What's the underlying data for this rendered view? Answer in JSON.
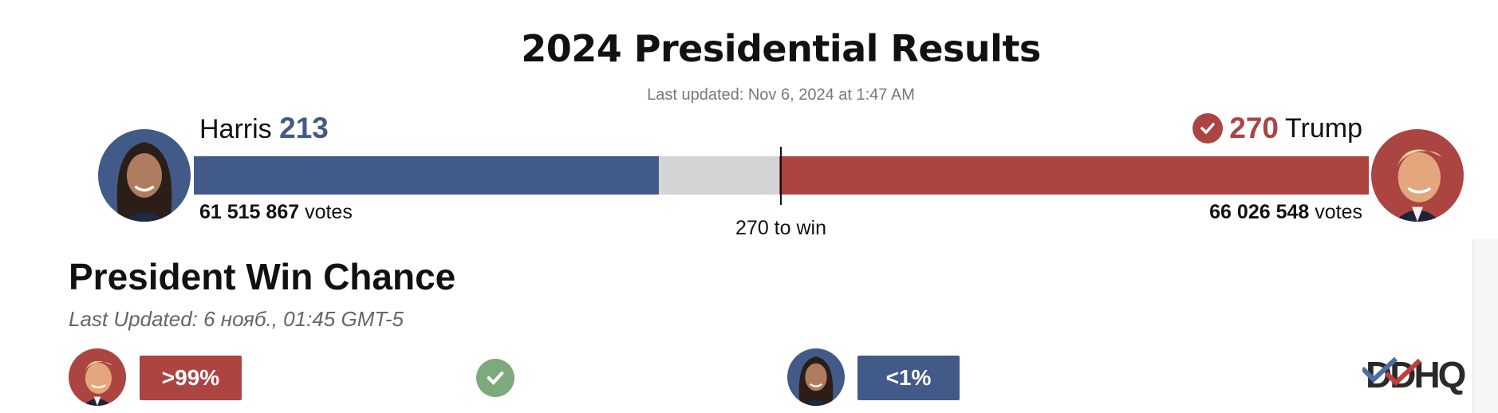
{
  "header": {
    "title": "2024 Presidential Results",
    "last_updated": "Last updated: Nov 6, 2024 at 1:47 AM"
  },
  "harris": {
    "name": "Harris",
    "electoral_votes": "213",
    "votes_number": "61 515 867",
    "votes_label": "votes",
    "color": "#425a87"
  },
  "trump": {
    "name": "Trump",
    "electoral_votes": "270",
    "votes_number": "66 026 548",
    "votes_label": "votes",
    "color": "#ac4442",
    "winner_icon": "check-circle-icon"
  },
  "bar": {
    "harris_ev": 213,
    "uncalled_ev": 55,
    "trump_ev": 270,
    "total_ev": 538,
    "threshold_label": "270 to win",
    "uncalled_color": "#d4d4d4"
  },
  "win_chance": {
    "title": "President Win Chance",
    "last_updated": "Last Updated: 6 нояб., 01:45 GMT-5",
    "trump_chance": ">99%",
    "harris_chance": "<1%",
    "called_icon": "green-check-icon",
    "logo": "DDHQ"
  }
}
